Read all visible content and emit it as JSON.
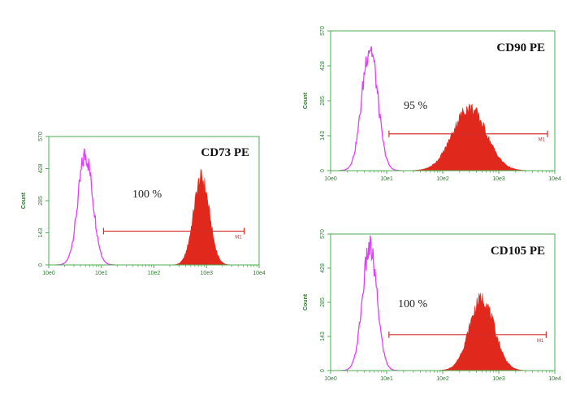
{
  "chart_data": [
    {
      "type": "histogram",
      "title": "CD73 PE",
      "ylabel": "Count",
      "x_scale": "log",
      "xlim": [
        1,
        10000
      ],
      "ylim": [
        0,
        570
      ],
      "x_ticks": [
        "10e0",
        "10e1",
        "10e2",
        "10e3",
        "10e4"
      ],
      "y_ticks": [
        "0",
        "143",
        "285",
        "428",
        "570"
      ],
      "series": [
        {
          "style": "outline",
          "color": "#e040fb",
          "peak_x": 5,
          "peak_count": 490,
          "spread_decades": 0.14
        },
        {
          "style": "filled",
          "color": "#e0281c",
          "peak_x": 800,
          "peak_count": 385,
          "spread_decades": 0.15
        }
      ],
      "marker": {
        "label": "M1",
        "x_start": 11,
        "x_end": 5200,
        "y": 150
      },
      "annotation": "100 %"
    },
    {
      "type": "histogram",
      "title": "CD90 PE",
      "ylabel": "Count",
      "x_scale": "log",
      "xlim": [
        1,
        10000
      ],
      "ylim": [
        0,
        570
      ],
      "x_ticks": [
        "10e0",
        "10e1",
        "10e2",
        "10e3",
        "10e4"
      ],
      "y_ticks": [
        "0",
        "143",
        "285",
        "428",
        "570"
      ],
      "series": [
        {
          "style": "outline",
          "color": "#e040fb",
          "peak_x": 5,
          "peak_count": 505,
          "spread_decades": 0.14
        },
        {
          "style": "filled",
          "color": "#e0281c",
          "peak_x": 300,
          "peak_count": 255,
          "spread_decades": 0.3
        }
      ],
      "marker": {
        "label": "M1",
        "x_start": 11,
        "x_end": 7400,
        "y": 150
      },
      "annotation": "95 %"
    },
    {
      "type": "histogram",
      "title": "CD105 PE",
      "ylabel": "Count",
      "x_scale": "log",
      "xlim": [
        1,
        10000
      ],
      "ylim": [
        0,
        570
      ],
      "x_ticks": [
        "10e0",
        "10e1",
        "10e2",
        "10e3",
        "10e4"
      ],
      "y_ticks": [
        "0",
        "143",
        "285",
        "428",
        "570"
      ],
      "series": [
        {
          "style": "outline",
          "color": "#e040fb",
          "peak_x": 5,
          "peak_count": 510,
          "spread_decades": 0.13
        },
        {
          "style": "filled",
          "color": "#e0281c",
          "peak_x": 500,
          "peak_count": 300,
          "spread_decades": 0.22
        }
      ],
      "marker": {
        "label": "M1",
        "x_start": 11,
        "x_end": 7000,
        "y": 150
      },
      "annotation": "100 %"
    }
  ],
  "colors": {
    "axis": "#4caf50",
    "tick_text": "#2e7d32",
    "marker": "#d32f2f"
  }
}
